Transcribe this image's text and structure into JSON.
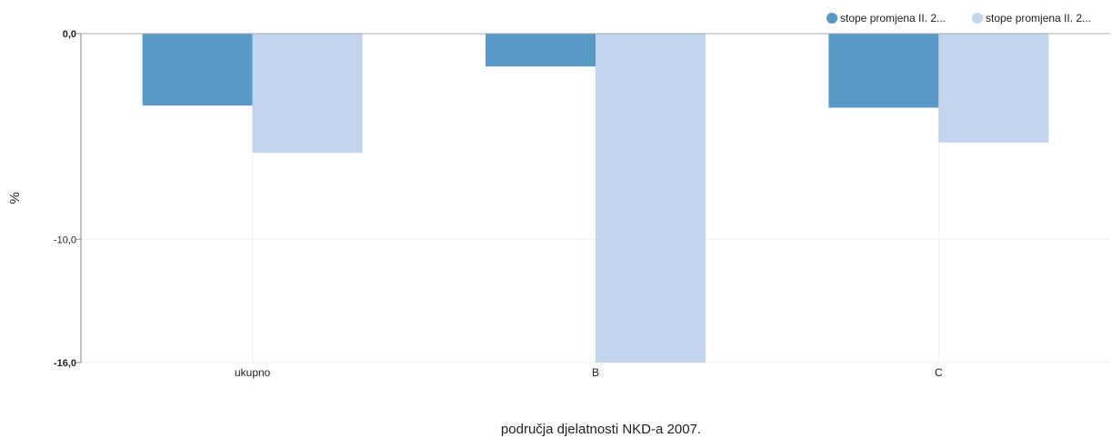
{
  "chart_data": {
    "type": "bar",
    "orientation": "vertical",
    "xlabel": "područja djelatnosti NKD-a 2007.",
    "ylabel": "%",
    "categories": [
      "ukupno",
      "B",
      "C"
    ],
    "series": [
      {
        "name": "stope promjena II. 2...",
        "color": "#5899c7",
        "values": [
          -3.5,
          -1.6,
          -3.6
        ]
      },
      {
        "name": "stope promjena II. 2...",
        "color": "#c3d4ed",
        "values": [
          -5.8,
          -16.0,
          -5.3
        ]
      }
    ],
    "ylim": [
      -16,
      0
    ],
    "yticks": [
      {
        "value": 0,
        "label": "0,0",
        "bold": true
      },
      {
        "value": -10,
        "label": "-10,0",
        "bold": false
      },
      {
        "value": -16,
        "label": "-16,0",
        "bold": true
      }
    ],
    "grid": true,
    "legend_position": "top-right"
  }
}
